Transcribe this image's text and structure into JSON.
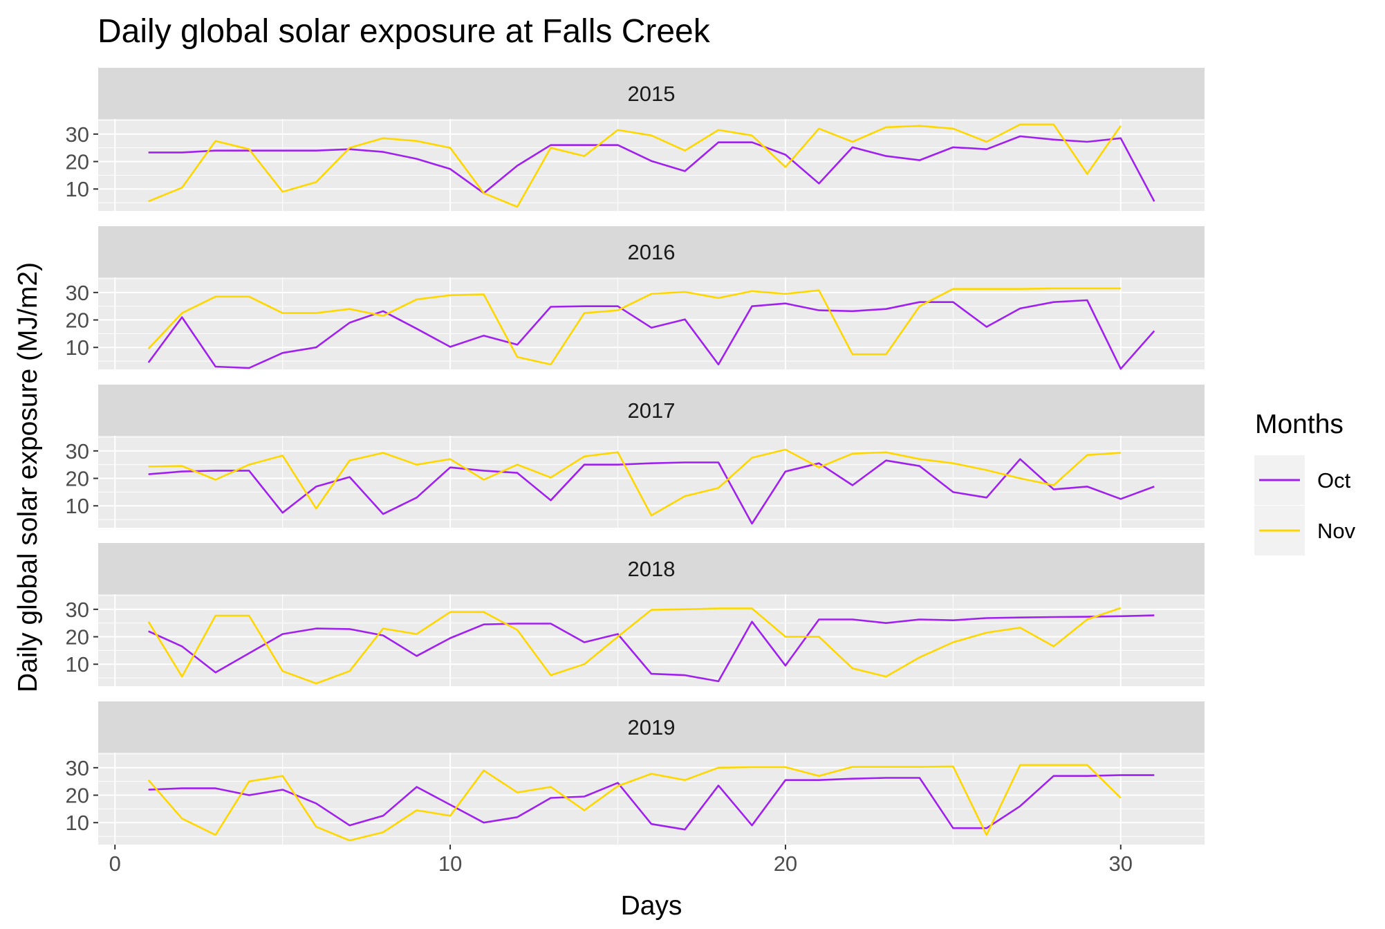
{
  "chart_data": {
    "type": "line",
    "title": "Daily global solar exposure at Falls Creek",
    "xlabel": "Days",
    "ylabel": "Daily global solar exposure (MJ/m2)",
    "xlim": [
      -0.5,
      32.5
    ],
    "ylim": [
      2,
      35.5
    ],
    "x_ticks": [
      0,
      10,
      20,
      30
    ],
    "y_ticks": [
      10,
      20,
      30
    ],
    "grid": true,
    "legend": {
      "title": "Months",
      "placement": "right",
      "entries": [
        {
          "label": "Oct",
          "color": "#A020F0"
        },
        {
          "label": "Nov",
          "color": "#FFD700"
        }
      ]
    },
    "colors": {
      "Oct": "#A020F0",
      "Nov": "#FFD700",
      "panel_bg": "#EBEBEB",
      "strip_bg": "#D9D9D9"
    },
    "panels": [
      {
        "label": "2015",
        "series": [
          {
            "name": "Oct",
            "x": [
              1,
              2,
              3,
              4,
              5,
              6,
              7,
              8,
              9,
              10,
              11,
              12,
              13,
              14,
              15,
              16,
              17,
              18,
              19,
              20,
              21,
              22,
              23,
              24,
              25,
              26,
              27,
              28,
              29,
              30,
              31
            ],
            "values": [
              23.3,
              23.3,
              24,
              24,
              24,
              24,
              24.5,
              23.5,
              21,
              17.3,
              8.5,
              18.5,
              26,
              26,
              26,
              20.2,
              16.5,
              27,
              27,
              22.5,
              12,
              25.2,
              22,
              20.5,
              25.2,
              24.5,
              29.2,
              28,
              27.2,
              28.5,
              5.5
            ]
          },
          {
            "name": "Nov",
            "x": [
              1,
              2,
              3,
              4,
              5,
              6,
              7,
              8,
              9,
              10,
              11,
              12,
              13,
              14,
              15,
              16,
              17,
              18,
              19,
              20,
              21,
              22,
              23,
              24,
              25,
              26,
              27,
              28,
              29,
              30
            ],
            "values": [
              5.5,
              10.5,
              27.5,
              24.5,
              9,
              12.5,
              25,
              28.5,
              27.5,
              25,
              8.5,
              3.5,
              25,
              22,
              31.5,
              29.5,
              24,
              31.5,
              29.5,
              18,
              32,
              27.2,
              32.5,
              33,
              32,
              27.2,
              33.5,
              33.5,
              15.5,
              33
            ]
          }
        ]
      },
      {
        "label": "2016",
        "series": [
          {
            "name": "Oct",
            "x": [
              1,
              2,
              3,
              4,
              5,
              6,
              7,
              8,
              9,
              10,
              11,
              12,
              13,
              14,
              15,
              16,
              17,
              18,
              19,
              20,
              21,
              22,
              23,
              24,
              25,
              26,
              27,
              28,
              29,
              30,
              31
            ],
            "values": [
              4.5,
              21,
              3,
              2.5,
              8,
              10,
              19,
              23.2,
              16.8,
              10.2,
              14.3,
              11,
              24.8,
              25,
              25,
              17.2,
              20.2,
              3.8,
              25,
              26,
              23.5,
              23.2,
              24,
              26.5,
              26.5,
              17.5,
              24.2,
              26.5,
              27.2,
              2.2,
              16
            ]
          },
          {
            "name": "Nov",
            "x": [
              1,
              2,
              3,
              4,
              5,
              6,
              7,
              8,
              9,
              10,
              11,
              12,
              13,
              14,
              15,
              16,
              17,
              18,
              19,
              20,
              21,
              22,
              23,
              24,
              25,
              26,
              27,
              28,
              29,
              30
            ],
            "values": [
              9.5,
              22.5,
              28.5,
              28.5,
              22.5,
              22.5,
              24,
              21.5,
              27.5,
              29,
              29.3,
              6.5,
              3.8,
              22.5,
              23.5,
              29.5,
              30.2,
              28,
              30.5,
              29.5,
              30.8,
              7.5,
              7.5,
              25,
              31.3,
              31.3,
              31.3,
              31.5,
              31.5,
              31.5
            ]
          }
        ]
      },
      {
        "label": "2017",
        "series": [
          {
            "name": "Oct",
            "x": [
              1,
              2,
              3,
              4,
              5,
              6,
              7,
              8,
              9,
              10,
              11,
              12,
              13,
              14,
              15,
              16,
              17,
              18,
              19,
              20,
              21,
              22,
              23,
              24,
              25,
              26,
              27,
              28,
              29,
              30,
              31
            ],
            "values": [
              21.5,
              22.5,
              22.8,
              22.8,
              7.5,
              17,
              20.5,
              7,
              13,
              24,
              22.8,
              22,
              12,
              25,
              25,
              25.5,
              25.8,
              25.8,
              3.5,
              22.5,
              25.5,
              17.5,
              26.5,
              24.5,
              15,
              13,
              27,
              16,
              17,
              12.5,
              17
            ]
          },
          {
            "name": "Nov",
            "x": [
              1,
              2,
              3,
              4,
              5,
              6,
              7,
              8,
              9,
              10,
              11,
              12,
              13,
              14,
              15,
              16,
              17,
              18,
              19,
              20,
              21,
              22,
              23,
              24,
              25,
              26,
              27,
              28,
              29,
              30
            ],
            "values": [
              24.3,
              24.5,
              19.5,
              25,
              28.3,
              9,
              26.5,
              29.3,
              25,
              27,
              19.5,
              25,
              20.3,
              28,
              29.5,
              6.5,
              13.5,
              16.5,
              27.5,
              30.5,
              24,
              29,
              29.5,
              27,
              25.5,
              23,
              20,
              17.5,
              28.5,
              29.3
            ]
          }
        ]
      },
      {
        "label": "2018",
        "series": [
          {
            "name": "Oct",
            "x": [
              1,
              2,
              3,
              4,
              5,
              6,
              7,
              8,
              9,
              10,
              11,
              12,
              13,
              14,
              15,
              16,
              17,
              18,
              19,
              20,
              21,
              22,
              23,
              24,
              25,
              26,
              27,
              28,
              29,
              30,
              31
            ],
            "values": [
              22,
              16.5,
              7,
              14,
              21,
              23,
              22.8,
              20.5,
              13,
              19.5,
              24.5,
              24.8,
              24.8,
              18,
              21,
              6.5,
              6,
              3.8,
              25.5,
              9.5,
              26.3,
              26.3,
              25,
              26.3,
              26,
              26.8,
              27,
              27.2,
              27.3,
              27.5,
              27.8
            ]
          },
          {
            "name": "Nov",
            "x": [
              1,
              2,
              3,
              4,
              5,
              6,
              7,
              8,
              9,
              10,
              11,
              12,
              13,
              14,
              15,
              16,
              17,
              18,
              19,
              20,
              21,
              22,
              23,
              24,
              25,
              26,
              27,
              28,
              29,
              30
            ],
            "values": [
              25.5,
              5.5,
              27.7,
              27.7,
              7.5,
              3,
              7.5,
              23,
              21,
              29,
              29,
              22.5,
              6,
              10,
              20,
              29.8,
              30,
              30.3,
              30.3,
              20,
              20,
              8.5,
              5.5,
              12.5,
              18,
              21.5,
              23.3,
              16.5,
              26.3,
              30.5
            ]
          }
        ]
      },
      {
        "label": "2019",
        "series": [
          {
            "name": "Oct",
            "x": [
              1,
              2,
              3,
              4,
              5,
              6,
              7,
              8,
              9,
              10,
              11,
              12,
              13,
              14,
              15,
              16,
              17,
              18,
              19,
              20,
              21,
              22,
              23,
              24,
              25,
              26,
              27,
              28,
              29,
              30,
              31
            ],
            "values": [
              22,
              22.5,
              22.5,
              20,
              22,
              17,
              9,
              12.5,
              23,
              16.5,
              10,
              12,
              19,
              19.5,
              24.5,
              9.5,
              7.5,
              23.5,
              9,
              25.5,
              25.5,
              26,
              26.3,
              26.3,
              8,
              8,
              16,
              27,
              27,
              27.3,
              27.3
            ]
          },
          {
            "name": "Nov",
            "x": [
              1,
              2,
              3,
              4,
              5,
              6,
              7,
              8,
              9,
              10,
              11,
              12,
              13,
              14,
              15,
              16,
              17,
              18,
              19,
              20,
              21,
              22,
              23,
              24,
              25,
              26,
              27,
              28,
              29,
              30
            ],
            "values": [
              25.5,
              11.5,
              5.5,
              25,
              27,
              8.5,
              3.5,
              6.5,
              14.5,
              12.5,
              29,
              21,
              23,
              14.5,
              23.3,
              27.8,
              25.5,
              30,
              30.2,
              30.2,
              27,
              30.3,
              30.3,
              30.3,
              30.5,
              5.5,
              31,
              31,
              31,
              19
            ]
          }
        ]
      }
    ]
  }
}
